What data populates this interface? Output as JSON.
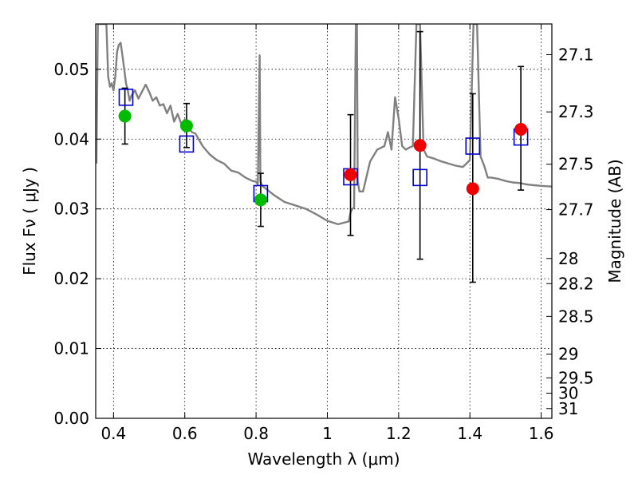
{
  "chart_data": {
    "type": "scatter",
    "title": "",
    "xlabel": "Wavelength  λ (μm)",
    "ylabel": "Flux  Fν  ( μJy )",
    "y2label": "Magnitude (AB)",
    "xlim": [
      0.35,
      1.63
    ],
    "ylim": [
      0.0,
      0.0565
    ],
    "grid": true,
    "x_ticks": [
      0.4,
      0.6,
      0.8,
      1.0,
      1.2,
      1.4,
      1.6
    ],
    "x_tick_labels": [
      "0.4",
      "0.6",
      "0.8",
      "1",
      "1.2",
      "1.4",
      "1.6"
    ],
    "y_ticks": [
      0.0,
      0.01,
      0.02,
      0.03,
      0.04,
      0.05
    ],
    "y_tick_labels": [
      "0.00",
      "0.01",
      "0.02",
      "0.03",
      "0.04",
      "0.05"
    ],
    "y2_ticks": [
      {
        "label": "27.1",
        "flux": 0.0521
      },
      {
        "label": "27.3",
        "flux": 0.0439
      },
      {
        "label": "27.5",
        "flux": 0.0364
      },
      {
        "label": "27.7",
        "flux": 0.0299
      },
      {
        "label": "28",
        "flux": 0.0229
      },
      {
        "label": "28.2",
        "flux": 0.0193
      },
      {
        "label": "28.5",
        "flux": 0.0146
      },
      {
        "label": "29",
        "flux": 0.0092
      },
      {
        "label": "29.5",
        "flux": 0.0058
      },
      {
        "label": "30",
        "flux": 0.0036
      },
      {
        "label": "31",
        "flux": 0.0014
      }
    ],
    "colors": {
      "template": "#808080",
      "model_squares": "#0000cc",
      "green_points": "#00bb00",
      "red_points": "#ee0000",
      "errorbars": "#000000"
    },
    "template_sed": {
      "x": [
        0.352,
        0.356,
        0.36,
        0.365,
        0.37,
        0.375,
        0.38,
        0.385,
        0.39,
        0.395,
        0.4,
        0.405,
        0.41,
        0.415,
        0.42,
        0.425,
        0.43,
        0.435,
        0.44,
        0.445,
        0.45,
        0.46,
        0.47,
        0.48,
        0.49,
        0.5,
        0.51,
        0.52,
        0.53,
        0.54,
        0.55,
        0.56,
        0.57,
        0.58,
        0.59,
        0.6,
        0.61,
        0.62,
        0.63,
        0.65,
        0.67,
        0.69,
        0.71,
        0.73,
        0.75,
        0.77,
        0.79,
        0.8,
        0.805,
        0.81,
        0.812,
        0.815,
        0.82,
        0.85,
        0.88,
        0.91,
        0.94,
        0.97,
        1.0,
        1.03,
        1.06,
        1.065,
        1.07,
        1.075,
        1.08,
        1.083,
        1.085,
        1.09,
        1.095,
        1.1,
        1.12,
        1.14,
        1.16,
        1.17,
        1.18,
        1.19,
        1.2,
        1.21,
        1.22,
        1.23,
        1.24,
        1.25,
        1.26,
        1.27,
        1.28,
        1.3,
        1.32,
        1.34,
        1.36,
        1.38,
        1.39,
        1.4,
        1.41,
        1.42,
        1.43,
        1.44,
        1.45,
        1.46,
        1.48,
        1.5,
        1.52,
        1.54,
        1.56,
        1.58,
        1.6,
        1.63
      ],
      "y": [
        0.0365,
        0.0565,
        0.0565,
        0.0565,
        0.0565,
        0.0565,
        0.0565,
        0.049,
        0.0475,
        0.048,
        0.047,
        0.049,
        0.0525,
        0.0535,
        0.0538,
        0.052,
        0.05,
        0.048,
        0.047,
        0.0455,
        0.0462,
        0.047,
        0.0458,
        0.0468,
        0.0478,
        0.0468,
        0.0455,
        0.046,
        0.0448,
        0.045,
        0.0437,
        0.0448,
        0.0425,
        0.0436,
        0.0422,
        0.0428,
        0.0416,
        0.041,
        0.0408,
        0.039,
        0.0378,
        0.037,
        0.0365,
        0.0355,
        0.0352,
        0.0345,
        0.034,
        0.0339,
        0.0335,
        0.052,
        0.034,
        0.0335,
        0.0332,
        0.032,
        0.031,
        0.0305,
        0.03,
        0.0292,
        0.0283,
        0.0278,
        0.0282,
        0.0295,
        0.03,
        0.0302,
        0.0565,
        0.0565,
        0.034,
        0.0325,
        0.0325,
        0.0325,
        0.0368,
        0.0385,
        0.039,
        0.041,
        0.0385,
        0.046,
        0.043,
        0.039,
        0.0385,
        0.0388,
        0.039,
        0.0565,
        0.0565,
        0.0385,
        0.0375,
        0.0372,
        0.0368,
        0.0365,
        0.0362,
        0.036,
        0.0365,
        0.037,
        0.0565,
        0.0565,
        0.0375,
        0.0362,
        0.0345,
        0.0345,
        0.0343,
        0.034,
        0.0338,
        0.0337,
        0.0335,
        0.0334,
        0.0333,
        0.0332
      ]
    },
    "model_fluxes": {
      "name": "",
      "x": [
        0.435,
        0.605,
        0.813,
        1.065,
        1.26,
        1.408,
        1.543
      ],
      "y": [
        0.046,
        0.0393,
        0.0322,
        0.0346,
        0.0345,
        0.039,
        0.0403
      ]
    },
    "green_points": {
      "x": [
        0.432,
        0.605,
        0.813
      ],
      "y": [
        0.0433,
        0.0419,
        0.0313
      ],
      "err_low": [
        0.0393,
        0.0388,
        0.0275
      ],
      "err_high": [
        0.0473,
        0.0451,
        0.0351
      ]
    },
    "red_points": {
      "x": [
        1.065,
        1.26,
        1.408,
        1.543
      ],
      "y": [
        0.0349,
        0.0391,
        0.0329,
        0.0414
      ],
      "err_low": [
        0.0262,
        0.0228,
        0.0195,
        0.0327
      ],
      "err_high": [
        0.0435,
        0.0554,
        0.0465,
        0.0504
      ]
    }
  }
}
